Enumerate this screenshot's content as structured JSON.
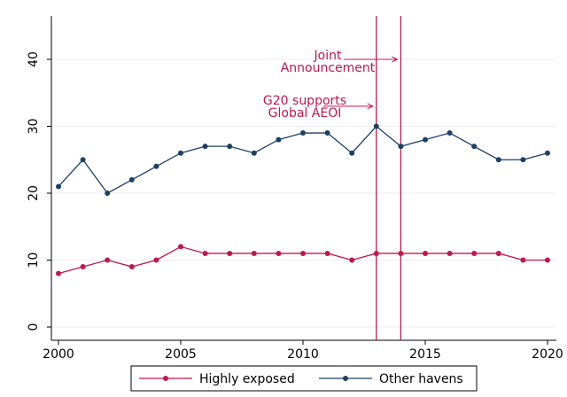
{
  "chart_data": {
    "type": "line",
    "title": "",
    "xlabel": "",
    "ylabel": "",
    "xlim": [
      2000,
      2020
    ],
    "ylim": [
      0,
      46
    ],
    "x_ticks": [
      2000,
      2005,
      2010,
      2015,
      2020
    ],
    "y_ticks": [
      0,
      10,
      20,
      30,
      40
    ],
    "grid": "horizontal",
    "legend_position": "bottom",
    "series": [
      {
        "name": "Highly exposed",
        "color": "#c1184d",
        "x": [
          2000,
          2001,
          2002,
          2003,
          2004,
          2005,
          2006,
          2007,
          2008,
          2009,
          2010,
          2011,
          2012,
          2013,
          2014,
          2015,
          2016,
          2017,
          2018,
          2019,
          2020
        ],
        "values": [
          8,
          9,
          10,
          9,
          10,
          12,
          11,
          11,
          11,
          11,
          11,
          11,
          10,
          11,
          11,
          11,
          11,
          11,
          11,
          10,
          10
        ]
      },
      {
        "name": "Other havens",
        "color": "#1d3f63",
        "x": [
          2000,
          2001,
          2002,
          2003,
          2004,
          2005,
          2006,
          2007,
          2008,
          2009,
          2010,
          2011,
          2012,
          2013,
          2014,
          2015,
          2016,
          2017,
          2018,
          2019,
          2020
        ],
        "values": [
          21,
          25,
          20,
          22,
          24,
          26,
          27,
          27,
          26,
          28,
          29,
          29,
          26,
          30,
          27,
          28,
          29,
          27,
          25,
          25,
          26
        ]
      }
    ],
    "vlines": [
      {
        "x": 2013,
        "color": "#c1184d"
      },
      {
        "x": 2014,
        "color": "#c1184d"
      }
    ],
    "annotations": [
      {
        "lines": [
          "Joint",
          "Announcement"
        ],
        "arrow_to": [
          2014,
          40
        ]
      },
      {
        "lines": [
          "G20 supports",
          "Global AEOI"
        ],
        "arrow_to": [
          2013,
          33
        ]
      }
    ]
  }
}
